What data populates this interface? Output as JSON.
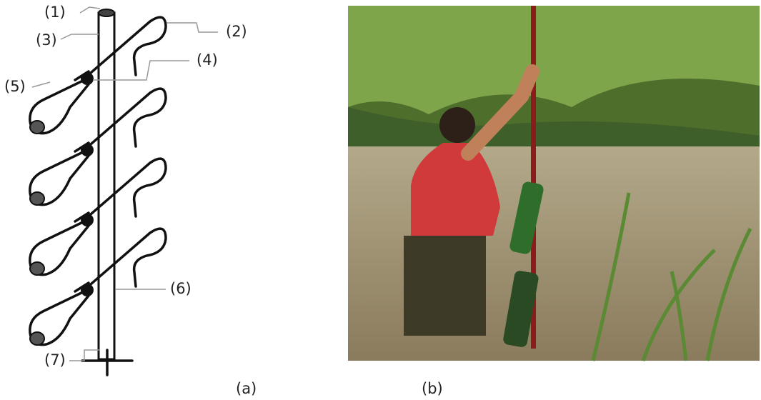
{
  "diagram": {
    "labels": [
      "(1)",
      "(2)",
      "(3)",
      "(4)",
      "(5)",
      "(6)",
      "(7)"
    ],
    "panels": [
      "(a)",
      "(b)"
    ]
  }
}
